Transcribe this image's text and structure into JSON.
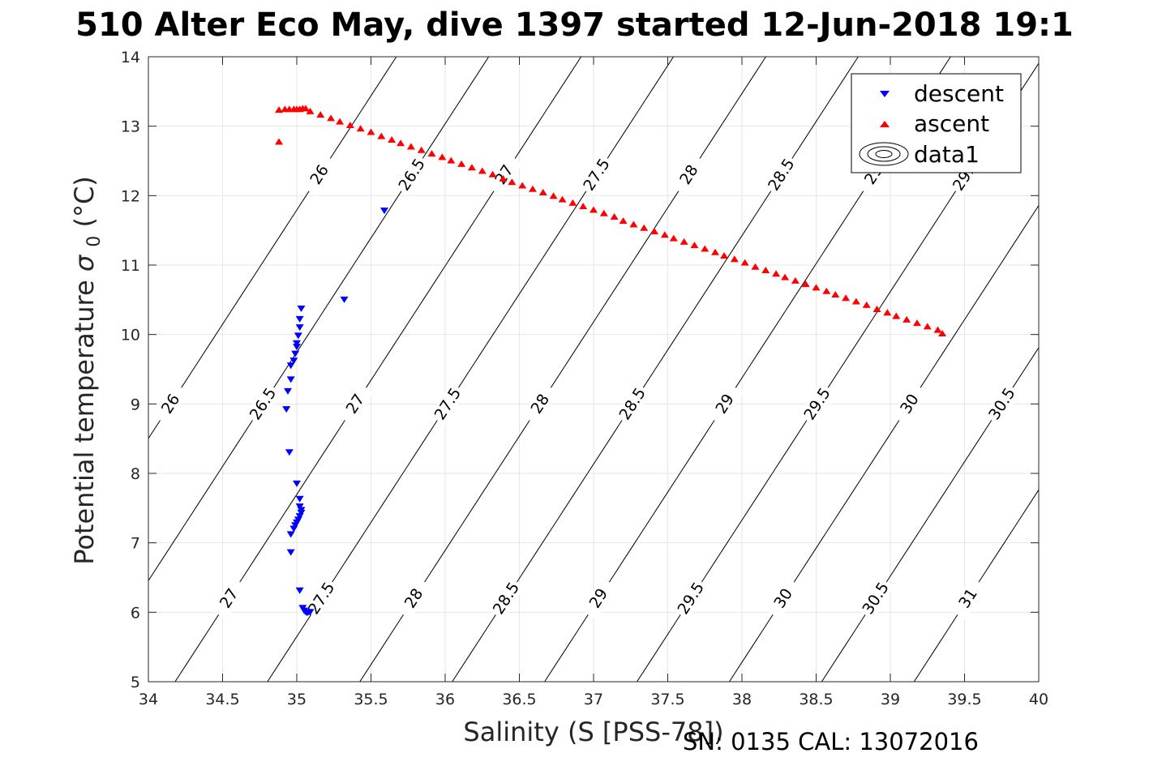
{
  "title": "510 Alter Eco May, dive 1397 started 12-Jun-2018 19:1",
  "footer_note": "SN: 0135  CAL: 13072016",
  "chart_data": {
    "type": "scatter",
    "xlabel": "Salinity (S [PSS-78])",
    "ylabel": "Potential temperature",
    "ylabel_symbol": "σ",
    "ylabel_subscript": "0",
    "ylabel_unit": "(°C)",
    "xlim": [
      34,
      40
    ],
    "ylim": [
      5,
      14
    ],
    "xticks": [
      34,
      34.5,
      35,
      35.5,
      36,
      36.5,
      37,
      37.5,
      38,
      38.5,
      39,
      39.5,
      40
    ],
    "xtick_labels": [
      "34",
      "34.5",
      "35",
      "35.5",
      "36",
      "36.5",
      "37",
      "37.5",
      "38",
      "38.5",
      "39",
      "39.5",
      "40"
    ],
    "yticks": [
      5,
      6,
      7,
      8,
      9,
      10,
      11,
      12,
      13,
      14
    ],
    "ytick_labels": [
      "5",
      "6",
      "7",
      "8",
      "9",
      "10",
      "11",
      "12",
      "13",
      "14"
    ],
    "grid": true,
    "legend_position": "top-right",
    "series": [
      {
        "name": "descent",
        "marker": "triangle-down",
        "color": "#0000ff",
        "points": [
          [
            35.59,
            11.78
          ],
          [
            35.32,
            10.5
          ],
          [
            35.03,
            10.37
          ],
          [
            35.02,
            10.22
          ],
          [
            35.02,
            10.1
          ],
          [
            35.01,
            9.98
          ],
          [
            35.0,
            9.87
          ],
          [
            35.0,
            9.82
          ],
          [
            34.99,
            9.72
          ],
          [
            34.98,
            9.62
          ],
          [
            34.96,
            9.55
          ],
          [
            34.96,
            9.35
          ],
          [
            34.94,
            9.18
          ],
          [
            34.93,
            8.92
          ],
          [
            34.95,
            8.3
          ],
          [
            35.0,
            7.85
          ],
          [
            35.02,
            7.63
          ],
          [
            35.02,
            7.52
          ],
          [
            35.03,
            7.47
          ],
          [
            35.03,
            7.43
          ],
          [
            35.02,
            7.38
          ],
          [
            35.01,
            7.33
          ],
          [
            35.0,
            7.29
          ],
          [
            34.99,
            7.25
          ],
          [
            34.98,
            7.2
          ],
          [
            34.96,
            7.12
          ],
          [
            34.96,
            6.86
          ],
          [
            35.02,
            6.31
          ],
          [
            35.04,
            6.06
          ],
          [
            35.05,
            6.02
          ],
          [
            35.06,
            6.0
          ],
          [
            35.08,
            6.0
          ],
          [
            35.09,
            6.0
          ],
          [
            35.07,
            5.99
          ]
        ]
      },
      {
        "name": "ascent",
        "marker": "triangle-up",
        "color": "#ff0000",
        "points": [
          [
            34.88,
            13.24
          ],
          [
            34.92,
            13.25
          ],
          [
            34.95,
            13.25
          ],
          [
            34.98,
            13.25
          ],
          [
            35.0,
            13.25
          ],
          [
            35.02,
            13.25
          ],
          [
            35.04,
            13.26
          ],
          [
            35.06,
            13.26
          ],
          [
            34.88,
            12.78
          ],
          [
            35.09,
            13.22
          ],
          [
            35.16,
            13.17
          ],
          [
            35.23,
            13.12
          ],
          [
            35.29,
            13.07
          ],
          [
            35.36,
            13.02
          ],
          [
            35.43,
            12.97
          ],
          [
            35.5,
            12.92
          ],
          [
            35.57,
            12.86
          ],
          [
            35.64,
            12.81
          ],
          [
            35.7,
            12.76
          ],
          [
            35.77,
            12.71
          ],
          [
            35.84,
            12.66
          ],
          [
            35.91,
            12.61
          ],
          [
            35.98,
            12.56
          ],
          [
            36.04,
            12.51
          ],
          [
            36.11,
            12.46
          ],
          [
            36.18,
            12.41
          ],
          [
            36.25,
            12.36
          ],
          [
            36.32,
            12.31
          ],
          [
            36.39,
            12.25
          ],
          [
            36.45,
            12.2
          ],
          [
            36.52,
            12.15
          ],
          [
            36.59,
            12.1
          ],
          [
            36.66,
            12.05
          ],
          [
            36.73,
            12.0
          ],
          [
            36.79,
            11.95
          ],
          [
            36.86,
            11.9
          ],
          [
            36.93,
            11.85
          ],
          [
            37.0,
            11.8
          ],
          [
            37.07,
            11.75
          ],
          [
            37.14,
            11.7
          ],
          [
            37.2,
            11.64
          ],
          [
            37.27,
            11.59
          ],
          [
            37.34,
            11.54
          ],
          [
            37.41,
            11.49
          ],
          [
            37.48,
            11.44
          ],
          [
            37.54,
            11.39
          ],
          [
            37.61,
            11.34
          ],
          [
            37.68,
            11.29
          ],
          [
            37.75,
            11.24
          ],
          [
            37.82,
            11.19
          ],
          [
            37.88,
            11.14
          ],
          [
            37.95,
            11.09
          ],
          [
            38.02,
            11.04
          ],
          [
            38.09,
            10.98
          ],
          [
            38.16,
            10.93
          ],
          [
            38.23,
            10.88
          ],
          [
            38.29,
            10.83
          ],
          [
            38.36,
            10.78
          ],
          [
            38.43,
            10.73
          ],
          [
            38.5,
            10.68
          ],
          [
            38.57,
            10.63
          ],
          [
            38.63,
            10.58
          ],
          [
            38.7,
            10.53
          ],
          [
            38.77,
            10.48
          ],
          [
            38.84,
            10.43
          ],
          [
            38.91,
            10.37
          ],
          [
            38.98,
            10.32
          ],
          [
            39.04,
            10.27
          ],
          [
            39.11,
            10.22
          ],
          [
            39.18,
            10.17
          ],
          [
            39.25,
            10.12
          ],
          [
            39.32,
            10.07
          ],
          [
            39.35,
            10.02
          ]
        ]
      }
    ],
    "contours": {
      "legend_name": "data1",
      "color": "#000000",
      "levels": [
        26,
        26.5,
        27,
        27.5,
        28,
        28.5,
        29,
        29.5,
        30,
        30.5,
        31
      ],
      "level_labels": [
        "26",
        "26.5",
        "27",
        "27.5",
        "28",
        "28.5",
        "29",
        "29.5",
        "30",
        "30.5",
        "31"
      ]
    }
  }
}
